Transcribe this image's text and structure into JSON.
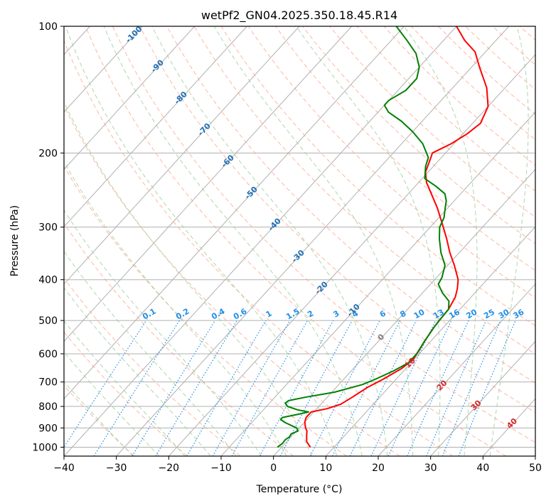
{
  "chart_data": {
    "type": "skew-t",
    "title": "wetPf2_GN04.2025.350.18.45.R14",
    "xlabel": "Temperature (°C)",
    "ylabel": "Pressure (hPa)",
    "xlim": [
      -40,
      50
    ],
    "ylim": [
      1050,
      100
    ],
    "xticks": [
      -40,
      -30,
      -20,
      -10,
      0,
      10,
      20,
      30,
      40,
      50
    ],
    "yticks": [
      1000,
      900,
      800,
      700,
      600,
      500,
      400,
      300,
      200,
      100
    ],
    "colors": {
      "temperature": "#ff0000",
      "dewpoint": "#008000",
      "grid": "#b0b0b0",
      "dry_adiabat": "#ff9f80",
      "moist_adiabat": "#99cc99",
      "mixing_ratio": "#1f8fe8",
      "isotherm_label": "#1f6fb4",
      "warm_label": "#d62728",
      "zero_label": "#808080"
    },
    "temperature_profile": {
      "name": "Temperature",
      "points": [
        {
          "p": 1000,
          "t": 5.5
        },
        {
          "p": 970,
          "t": 3.8
        },
        {
          "p": 940,
          "t": 2.8
        },
        {
          "p": 915,
          "t": 2.0
        },
        {
          "p": 900,
          "t": 1.2
        },
        {
          "p": 870,
          "t": 0.0
        },
        {
          "p": 850,
          "t": -0.5
        },
        {
          "p": 825,
          "t": -0.5
        },
        {
          "p": 810,
          "t": 2.0
        },
        {
          "p": 790,
          "t": 3.8
        },
        {
          "p": 760,
          "t": 4.8
        },
        {
          "p": 720,
          "t": 6.0
        },
        {
          "p": 690,
          "t": 7.5
        },
        {
          "p": 650,
          "t": 9.2
        },
        {
          "p": 620,
          "t": 9.8
        },
        {
          "p": 590,
          "t": 9.4
        },
        {
          "p": 560,
          "t": 8.8
        },
        {
          "p": 520,
          "t": 8.2
        },
        {
          "p": 500,
          "t": 8.0
        },
        {
          "p": 470,
          "t": 7.8
        },
        {
          "p": 440,
          "t": 7.0
        },
        {
          "p": 420,
          "t": 5.9
        },
        {
          "p": 400,
          "t": 4.5
        },
        {
          "p": 370,
          "t": 1.3
        },
        {
          "p": 345,
          "t": -1.8
        },
        {
          "p": 320,
          "t": -4.8
        },
        {
          "p": 300,
          "t": -7.5
        },
        {
          "p": 270,
          "t": -12.0
        },
        {
          "p": 250,
          "t": -15.6
        },
        {
          "p": 235,
          "t": -18.5
        },
        {
          "p": 222,
          "t": -20.5
        },
        {
          "p": 205,
          "t": -22.0
        },
        {
          "p": 200,
          "t": -22.5
        },
        {
          "p": 190,
          "t": -20.5
        },
        {
          "p": 180,
          "t": -19.2
        },
        {
          "p": 170,
          "t": -18.5
        },
        {
          "p": 155,
          "t": -20.0
        },
        {
          "p": 140,
          "t": -23.5
        },
        {
          "p": 125,
          "t": -28.5
        },
        {
          "p": 115,
          "t": -32.0
        },
        {
          "p": 108,
          "t": -36.0
        },
        {
          "p": 100,
          "t": -40.0
        }
      ]
    },
    "dewpoint_profile": {
      "name": "Dewpoint",
      "points": [
        {
          "p": 1000,
          "t": -0.8
        },
        {
          "p": 980,
          "t": -0.5
        },
        {
          "p": 960,
          "t": -0.6
        },
        {
          "p": 945,
          "t": -0.3
        },
        {
          "p": 930,
          "t": -0.5
        },
        {
          "p": 915,
          "t": 0.3
        },
        {
          "p": 900,
          "t": -0.5
        },
        {
          "p": 875,
          "t": -3.5
        },
        {
          "p": 860,
          "t": -5.0
        },
        {
          "p": 850,
          "t": -5.0
        },
        {
          "p": 835,
          "t": -2.5
        },
        {
          "p": 825,
          "t": -1.0
        },
        {
          "p": 815,
          "t": -3.5
        },
        {
          "p": 800,
          "t": -6.0
        },
        {
          "p": 785,
          "t": -7.0
        },
        {
          "p": 775,
          "t": -6.8
        },
        {
          "p": 760,
          "t": -4.0
        },
        {
          "p": 740,
          "t": 0.5
        },
        {
          "p": 710,
          "t": 4.5
        },
        {
          "p": 690,
          "t": 6.0
        },
        {
          "p": 660,
          "t": 8.0
        },
        {
          "p": 630,
          "t": 9.5
        },
        {
          "p": 600,
          "t": 9.5
        },
        {
          "p": 560,
          "t": 8.8
        },
        {
          "p": 520,
          "t": 8.2
        },
        {
          "p": 500,
          "t": 8.0
        },
        {
          "p": 470,
          "t": 7.8
        },
        {
          "p": 450,
          "t": 6.5
        },
        {
          "p": 430,
          "t": 3.8
        },
        {
          "p": 410,
          "t": 1.5
        },
        {
          "p": 395,
          "t": 1.0
        },
        {
          "p": 370,
          "t": -0.5
        },
        {
          "p": 345,
          "t": -3.5
        },
        {
          "p": 320,
          "t": -6.2
        },
        {
          "p": 300,
          "t": -8.2
        },
        {
          "p": 285,
          "t": -9.0
        },
        {
          "p": 270,
          "t": -10.5
        },
        {
          "p": 260,
          "t": -11.5
        },
        {
          "p": 250,
          "t": -13.0
        },
        {
          "p": 240,
          "t": -16.0
        },
        {
          "p": 230,
          "t": -19.5
        },
        {
          "p": 215,
          "t": -21.5
        },
        {
          "p": 205,
          "t": -22.5
        },
        {
          "p": 190,
          "t": -26.0
        },
        {
          "p": 178,
          "t": -30.0
        },
        {
          "p": 168,
          "t": -34.0
        },
        {
          "p": 160,
          "t": -38.0
        },
        {
          "p": 154,
          "t": -40.0
        },
        {
          "p": 150,
          "t": -40.0
        },
        {
          "p": 142,
          "t": -38.5
        },
        {
          "p": 133,
          "t": -38.5
        },
        {
          "p": 125,
          "t": -40.0
        },
        {
          "p": 116,
          "t": -43.0
        },
        {
          "p": 108,
          "t": -47.0
        },
        {
          "p": 100,
          "t": -51.5
        }
      ]
    },
    "isotherm_labels": [
      "-100",
      "-90",
      "-80",
      "-70",
      "-60",
      "-50",
      "-40",
      "-30",
      "-20",
      "-10",
      "0",
      "10",
      "20",
      "30",
      "40"
    ],
    "mixing_ratio_labels": [
      "0.1",
      "0.2",
      "0.4",
      "0.6",
      "1",
      "1.5",
      "2",
      "3",
      "4",
      "6",
      "8",
      "10",
      "13",
      "16",
      "20",
      "25",
      "30",
      "36"
    ],
    "mixing_ratio_label_pressure": 500
  }
}
